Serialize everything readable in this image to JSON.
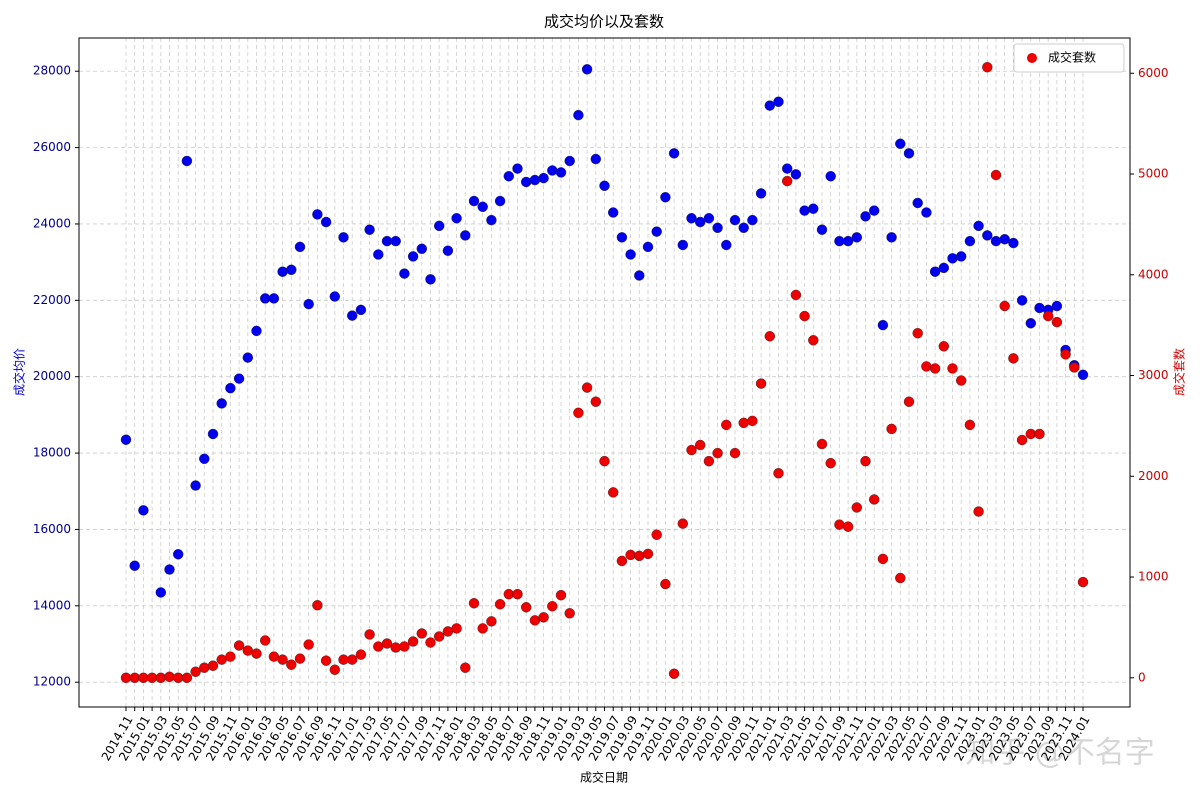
{
  "chart_data": {
    "type": "scatter",
    "title": "成交均价以及套数",
    "xlabel": "成交日期",
    "ylabel": "成交均价",
    "y2label": "成交套数",
    "watermark": "知乎 @不名字",
    "categories": [
      "2014.11",
      null,
      "2015.01",
      null,
      "2015.03",
      null,
      "2015.05",
      null,
      "2015.07",
      null,
      "2015.09",
      null,
      "2015.11",
      null,
      "2016.01",
      null,
      "2016.03",
      null,
      "2016.05",
      null,
      "2016.07",
      null,
      "2016.09",
      null,
      "2016.11",
      null,
      "2017.01",
      null,
      "2017.03",
      null,
      "2017.05",
      null,
      "2017.07",
      null,
      "2017.09",
      null,
      "2017.11",
      null,
      "2018.01",
      null,
      "2018.03",
      null,
      "2018.05",
      null,
      "2018.07",
      null,
      "2018.09",
      null,
      "2018.11",
      null,
      "2019.01",
      null,
      "2019.03",
      null,
      "2019.05",
      null,
      "2019.07",
      null,
      "2019.09",
      null,
      "2019.11",
      null,
      "2020.01",
      null,
      "2020.03",
      null,
      "2020.05",
      null,
      "2020.07",
      null,
      "2020.09",
      null,
      "2020.11",
      null,
      "2021.01",
      null,
      "2021.03",
      null,
      "2021.05",
      null,
      "2021.07",
      null,
      "2021.09",
      null,
      "2021.11",
      null,
      "2022.01",
      null,
      "2022.03",
      null,
      "2022.05",
      null,
      "2022.07",
      null,
      "2022.09",
      null,
      "2022.11",
      null,
      "2023.01",
      null,
      "2023.03",
      null,
      "2023.05",
      null,
      "2023.07",
      null,
      "2023.09",
      null,
      "2023.11",
      null,
      "2024.01"
    ],
    "series": [
      {
        "color": "#0000ee",
        "axis": "y",
        "values": [
          18350,
          15050,
          16500,
          null,
          14350,
          14950,
          15350,
          25650,
          17150,
          17850,
          18500,
          19300,
          19700,
          19950,
          20500,
          21200,
          22050,
          22050,
          22750,
          22800,
          23400,
          21900,
          24250,
          24050,
          22100,
          23650,
          21600,
          21750,
          23850,
          23200,
          23550,
          23550,
          22700,
          23150,
          23350,
          22550,
          23950,
          23300,
          24150,
          23700,
          24600,
          24450,
          24100,
          24600,
          25250,
          25450,
          25100,
          25150,
          25200,
          25400,
          25350,
          25650,
          26850,
          28050,
          25700,
          25000,
          24300,
          23650,
          23200,
          22650,
          23400,
          23800,
          24700,
          25850,
          23450,
          24150,
          24050,
          24150,
          23900,
          23450,
          24100,
          23900,
          24100,
          24800,
          27100,
          27200,
          25450,
          25300,
          24350,
          24400,
          23850,
          25250,
          23550,
          23550,
          23650,
          24200,
          24350,
          21350,
          23650,
          26100,
          25850,
          24550,
          24300,
          22750,
          22850,
          23100,
          23150,
          23550,
          23950,
          23700,
          23550,
          23600,
          23500,
          22000,
          21400,
          21800,
          21750,
          21850,
          20700,
          20300,
          20050
        ]
      },
      {
        "name": "成交套数",
        "color": "#ee0000",
        "axis": "y2",
        "values": [
          0,
          0,
          0,
          0,
          0,
          10,
          0,
          0,
          60,
          100,
          120,
          180,
          210,
          320,
          270,
          240,
          370,
          210,
          180,
          130,
          190,
          330,
          720,
          170,
          80,
          180,
          180,
          230,
          430,
          310,
          340,
          300,
          310,
          360,
          440,
          350,
          410,
          460,
          490,
          100,
          740,
          490,
          560,
          730,
          830,
          830,
          700,
          570,
          600,
          710,
          820,
          640,
          2630,
          2880,
          2740,
          2150,
          1840,
          1160,
          1220,
          1210,
          1230,
          1420,
          930,
          40,
          1530,
          2260,
          2310,
          2150,
          2230,
          2510,
          2230,
          2530,
          2550,
          2920,
          3390,
          2030,
          4930,
          3800,
          3590,
          3350,
          2320,
          2130,
          1520,
          1500,
          1690,
          2150,
          1770,
          1180,
          2470,
          990,
          2740,
          3420,
          3090,
          3070,
          3290,
          3070,
          2950,
          2510,
          1650,
          6060,
          4990,
          3690,
          3170,
          2360,
          2420,
          2420,
          3590,
          3530,
          3210,
          3080,
          950
        ]
      }
    ],
    "ylim": [
      11350,
      28870
    ],
    "yticks": [
      12000,
      14000,
      16000,
      18000,
      20000,
      22000,
      24000,
      26000,
      28000
    ],
    "y2lim": [
      -290,
      6350
    ],
    "y2ticks": [
      0,
      1000,
      2000,
      3000,
      4000,
      5000,
      6000
    ],
    "grid": true,
    "legend": "upper right",
    "ycolor": "#00008b",
    "y2color": "#cc0000"
  }
}
